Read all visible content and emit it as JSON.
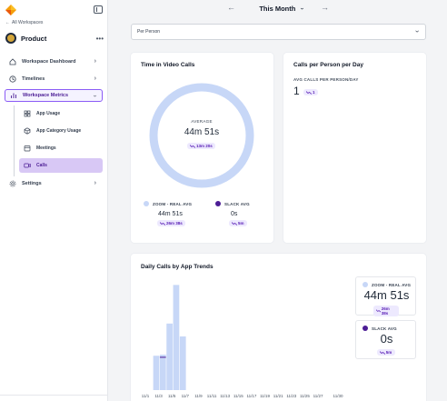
{
  "sidebar": {
    "back_link": "All Workspaces",
    "workspace_name": "Product",
    "more": "•••",
    "nav": [
      {
        "label": "Workspace Dashboard"
      },
      {
        "label": "Timelines"
      },
      {
        "label": "Workspace Metrics"
      },
      {
        "label": "Settings"
      }
    ],
    "subnav": [
      {
        "label": "App Usage"
      },
      {
        "label": "App Category Usage"
      },
      {
        "label": "Meetings"
      },
      {
        "label": "Calls"
      }
    ]
  },
  "header": {
    "period": "This Month"
  },
  "filter": {
    "value": "Per Person"
  },
  "time_in_calls": {
    "title": "Time in Video Calls",
    "center_label": "AVERAGE",
    "center_value": "44m 51s",
    "center_trend": "13m 20s",
    "zoom_label": "ZOOM - REAL AVG",
    "zoom_value": "44m 51s",
    "zoom_trend": "26m 38s",
    "slack_label": "SLACK AVG",
    "slack_value": "0s",
    "slack_trend": "5m"
  },
  "calls_per_person": {
    "title": "Calls per Person per Day",
    "sub_label": "AVG CALLS PER PERSON/DAY",
    "value": "1",
    "trend": "1"
  },
  "daily_calls": {
    "title": "Daily Calls by App Trends",
    "zoom_label": "ZOOM - REAL AVG",
    "zoom_value": "44m 51s",
    "zoom_trend": "26m 38s",
    "slack_label": "SLACK AVG",
    "slack_value": "0s",
    "slack_trend": "5m"
  },
  "colors": {
    "accent": "#8b5cf6",
    "zoom": "#c7d7f7",
    "slack": "#4c1d95"
  },
  "chart_data": {
    "type": "bar",
    "title": "Daily Calls by App Trends",
    "categories": [
      "11/1",
      "11/2",
      "11/3",
      "11/4",
      "11/5",
      "11/6",
      "11/7",
      "11/8",
      "11/9",
      "11/10",
      "11/11",
      "11/12",
      "11/13",
      "11/14",
      "11/15",
      "11/16",
      "11/17",
      "11/18",
      "11/19",
      "11/20",
      "11/21",
      "11/22",
      "11/23",
      "11/24",
      "11/25",
      "11/26",
      "11/27",
      "11/28",
      "11/29",
      "11/30"
    ],
    "tick_labels": [
      "11/1",
      "11/3",
      "11/5",
      "11/7",
      "11/9",
      "11/11",
      "11/13",
      "11/15",
      "11/17",
      "11/19",
      "11/21",
      "11/23",
      "11/25",
      "11/27",
      "11/30"
    ],
    "series": [
      {
        "name": "ZOOM - REAL AVG",
        "values": [
          32,
          33,
          62,
          98,
          50,
          0,
          0,
          0,
          0,
          0,
          0,
          0,
          0,
          0,
          0,
          0,
          0,
          0,
          0,
          0,
          0,
          0,
          0,
          0,
          0,
          0,
          0,
          0,
          0,
          0
        ]
      },
      {
        "name": "SLACK AVG",
        "values": [
          0,
          0,
          0,
          0,
          0,
          0,
          0,
          0,
          0,
          0,
          0,
          0,
          0,
          0,
          0,
          0,
          0,
          0,
          0,
          0,
          0,
          0,
          0,
          0,
          0,
          0,
          0,
          0,
          0,
          0
        ]
      }
    ],
    "ylim": [
      0,
      100
    ],
    "grid": false,
    "legend": "right"
  }
}
